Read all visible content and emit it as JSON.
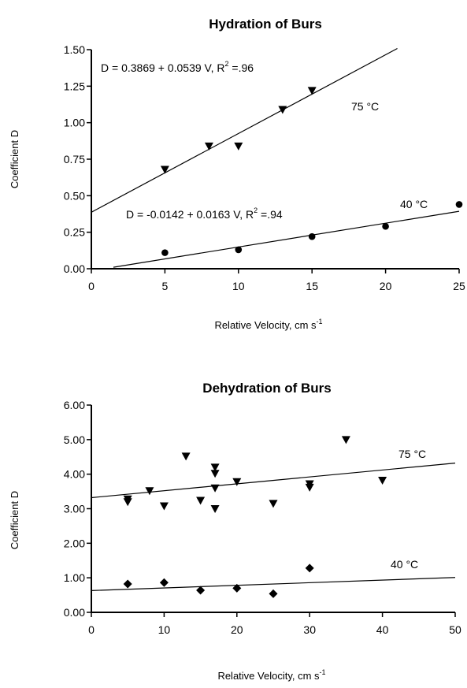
{
  "chart_data": [
    {
      "type": "scatter",
      "title": "Hydration of Burs",
      "xlabel": "Relative Velocity, cm s",
      "xlabel_sup": "-1",
      "ylabel": "Coefficient D",
      "xlim": [
        0,
        25
      ],
      "ylim": [
        0,
        1.5
      ],
      "x_ticks": [
        "0",
        "5",
        "10",
        "15",
        "20",
        "25"
      ],
      "y_ticks": [
        "0.00",
        "0.25",
        "0.50",
        "0.75",
        "1.00",
        "1.25",
        "1.50"
      ],
      "grid": false,
      "series": [
        {
          "name": "75 °C",
          "marker": "triangle-down",
          "points": [
            [
              5,
              0.68
            ],
            [
              8,
              0.84
            ],
            [
              10,
              0.84
            ],
            [
              13,
              1.09
            ],
            [
              15,
              1.22
            ]
          ],
          "fit": {
            "intercept": 0.3869,
            "slope": 0.0539,
            "x_range": [
              0,
              20.8
            ]
          },
          "equation": "D = 0.3869 + 0.0539 V, R",
          "r2_sup": "2",
          "r2_value": " =.96"
        },
        {
          "name": "40 °C",
          "marker": "circle",
          "points": [
            [
              5,
              0.11
            ],
            [
              10,
              0.13
            ],
            [
              15,
              0.22
            ],
            [
              20,
              0.29
            ],
            [
              25,
              0.44
            ]
          ],
          "fit": {
            "intercept": -0.0142,
            "slope": 0.0163,
            "x_range": [
              1.5,
              25
            ]
          },
          "equation": "D = -0.0142 + 0.0163 V, R",
          "r2_sup": "2",
          "r2_value": " =.94"
        }
      ]
    },
    {
      "type": "scatter",
      "title": "Dehydration of Burs",
      "xlabel": "Relative Velocity, cm s",
      "xlabel_sup": "-1",
      "ylabel": "Coefficient D",
      "xlim": [
        0,
        50
      ],
      "ylim": [
        0,
        6
      ],
      "x_ticks": [
        "0",
        "10",
        "20",
        "30",
        "40",
        "50"
      ],
      "y_ticks": [
        "0.00",
        "1.00",
        "2.00",
        "3.00",
        "4.00",
        "5.00",
        "6.00"
      ],
      "grid": false,
      "series": [
        {
          "name": "75 °C",
          "marker": "triangle-down",
          "points": [
            [
              5,
              3.28
            ],
            [
              5,
              3.2
            ],
            [
              8,
              3.52
            ],
            [
              10,
              3.08
            ],
            [
              13,
              4.52
            ],
            [
              15,
              3.24
            ],
            [
              17,
              4.2
            ],
            [
              17,
              4.02
            ],
            [
              17,
              3.6
            ],
            [
              17,
              3.0
            ],
            [
              20,
              3.78
            ],
            [
              25,
              3.15
            ],
            [
              30,
              3.72
            ],
            [
              30,
              3.62
            ],
            [
              35,
              5.0
            ],
            [
              40,
              3.82
            ]
          ],
          "fit": {
            "intercept": 3.32,
            "slope": 0.02,
            "x_range": [
              0,
              50
            ]
          }
        },
        {
          "name": "40 °C",
          "marker": "diamond",
          "points": [
            [
              5,
              0.82
            ],
            [
              10,
              0.86
            ],
            [
              15,
              0.64
            ],
            [
              20,
              0.7
            ],
            [
              25,
              0.54
            ],
            [
              30,
              1.28
            ]
          ],
          "fit": {
            "intercept": 0.63,
            "slope": 0.0076,
            "x_range": [
              0,
              50
            ]
          }
        }
      ]
    }
  ]
}
